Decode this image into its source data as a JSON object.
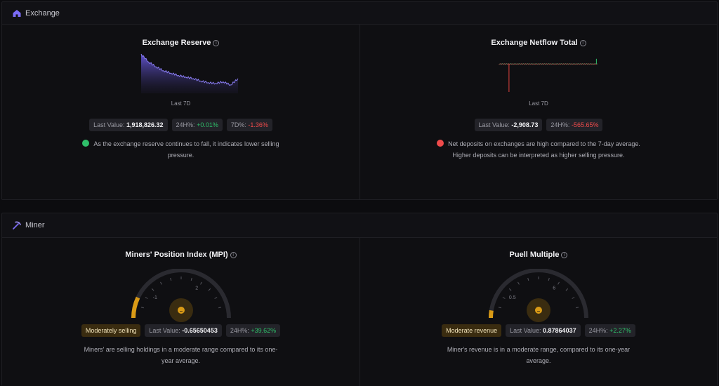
{
  "exchange": {
    "title": "Exchange",
    "reserve": {
      "title": "Exchange Reserve",
      "period": "Last 7D",
      "last_value_label": "Last Value: ",
      "last_value": "1,918,826.32",
      "h24_label": "24H%: ",
      "h24_value": "+0.01%",
      "d7_label": "7D%: ",
      "d7_value": "-1.36%",
      "sentiment_icon": "smile-icon",
      "sentiment_color": "#2fbf6a",
      "description": "As the exchange reserve continues to fall, it indicates lower selling pressure."
    },
    "netflow": {
      "title": "Exchange Netflow Total",
      "period": "Last 7D",
      "last_value_label": "Last Value: ",
      "last_value": "-2,908.73",
      "h24_label": "24H%: ",
      "h24_value": "-565.65%",
      "sentiment_icon": "frown-icon",
      "sentiment_color": "#ef4b4b",
      "description": "Net deposits on exchanges are high compared to the 7-day average. Higher deposits can be interpreted as higher selling pressure."
    }
  },
  "miner": {
    "title": "Miner",
    "mpi": {
      "title": "Miners' Position Index (MPI)",
      "gauge_ticks": [
        "-1",
        "2"
      ],
      "status": "Moderately selling",
      "last_value_label": "Last Value: ",
      "last_value": "-0.65650453",
      "h24_label": "24H%: ",
      "h24_value": "+39.62%",
      "fill_fraction": 0.14,
      "description": "Miners' are selling holdings in a moderate range compared to its one-year average."
    },
    "puell": {
      "title": "Puell Multiple",
      "gauge_ticks": [
        "0.5",
        "6"
      ],
      "status": "Moderate revenue",
      "last_value_label": "Last Value: ",
      "last_value": "0.87864037",
      "h24_label": "24H%: ",
      "h24_value": "+2.27%",
      "fill_fraction": 0.05,
      "description": "Miner's revenue is in a moderate range, compared to its one-year average."
    }
  },
  "colors": {
    "accent": "#7b6cf6",
    "gauge_fill": "#d99a16",
    "gauge_track": "#2a2a30"
  },
  "chart_data": [
    {
      "type": "area",
      "series": [
        {
          "values": [
            100,
            99,
            98.4,
            97.9,
            97.6,
            97.3,
            97.1,
            96.9,
            96.6,
            96.4,
            96.3,
            96.5,
            96.1,
            96.9
          ]
        }
      ]
    },
    {
      "type": "bar",
      "series": [
        {
          "values": [
            0,
            0,
            0,
            0,
            -100,
            0,
            0,
            0,
            0,
            0,
            0,
            0,
            0,
            0,
            0,
            0,
            0,
            0,
            0,
            0,
            0,
            0,
            0,
            0,
            0,
            0,
            0,
            0,
            0,
            0,
            0,
            0,
            0,
            0,
            0,
            0,
            0,
            0,
            0,
            0,
            0,
            0,
            0,
            0,
            18
          ]
        }
      ]
    }
  ]
}
